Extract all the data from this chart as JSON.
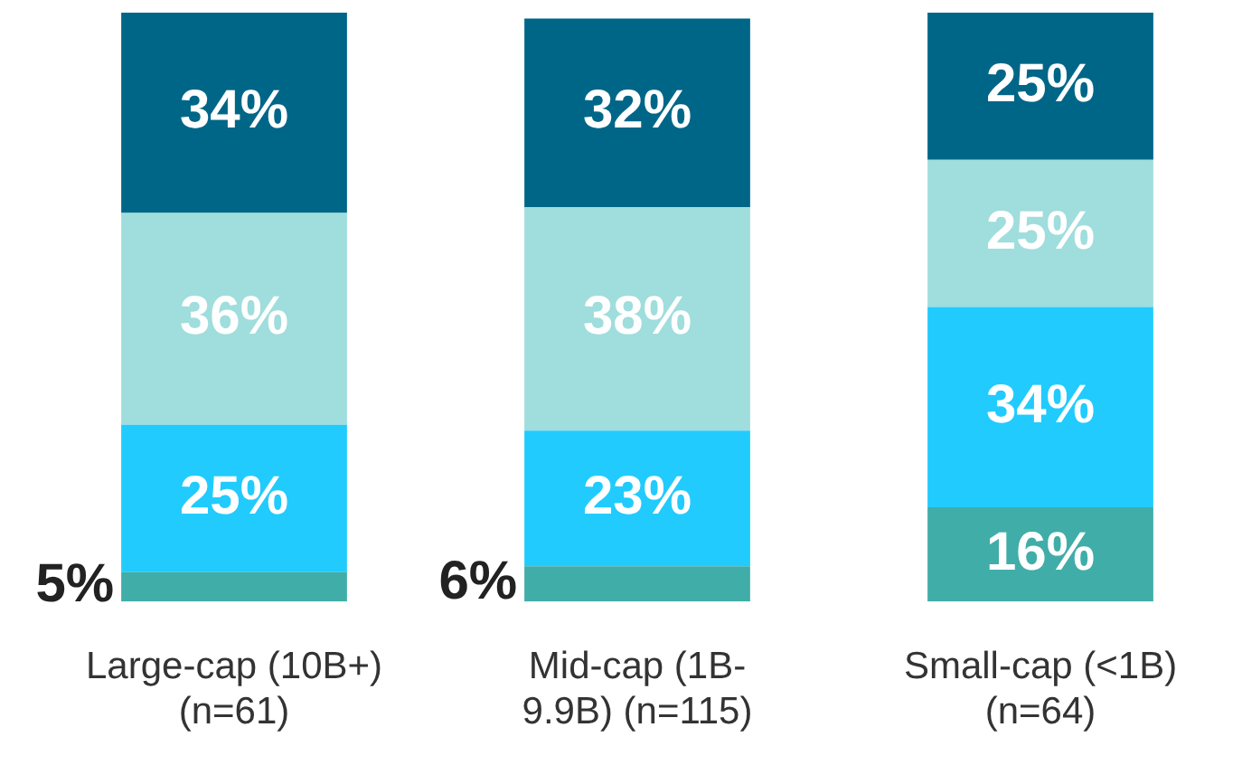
{
  "chart_data": {
    "type": "bar",
    "stacked": true,
    "legend": false,
    "grid": false,
    "tick_labels": "x",
    "categories": [
      "Large-cap (10B+) (n=61)",
      "Mid-cap (1B-9.9B) (n=115)",
      "Small-cap (<1B) (n=64)"
    ],
    "ylim": [
      0,
      100
    ],
    "series": [
      {
        "color": "#40ada8",
        "values": [
          5,
          6,
          16
        ],
        "value_labels": [
          "5%",
          "6%",
          "16%"
        ]
      },
      {
        "color": "#21cbfd",
        "values": [
          25,
          23,
          34
        ],
        "value_labels": [
          "25%",
          "23%",
          "34%"
        ]
      },
      {
        "color": "#a0dddd",
        "values": [
          36,
          38,
          25
        ],
        "value_labels": [
          "36%",
          "38%",
          "25%"
        ]
      },
      {
        "color": "#006688",
        "values": [
          34,
          32,
          25
        ],
        "value_labels": [
          "34%",
          "32%",
          "25%"
        ]
      }
    ]
  }
}
